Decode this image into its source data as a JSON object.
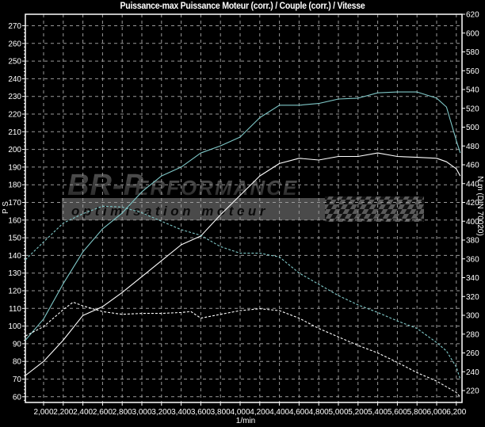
{
  "chart_data": {
    "type": "line",
    "title": "Puissance-max Puissance Moteur (corr.) / Couple (corr.) / Vitesse",
    "xlabel": "1/min",
    "ylabel_left": "P S",
    "ylabel_right": "N m (DIN 70020)",
    "xlim": [
      1815,
      6255
    ],
    "ylim_left": [
      57,
      276.5
    ],
    "ylim_right": [
      207,
      620
    ],
    "x_ticks": [
      2000,
      2200,
      2400,
      2600,
      2800,
      3000,
      3200,
      3400,
      3600,
      3800,
      4000,
      4200,
      4400,
      4600,
      4800,
      5000,
      5200,
      5400,
      5600,
      5800,
      6000,
      6200
    ],
    "x_tick_labels": [
      "2,000",
      "2,200",
      "2,400",
      "2,600",
      "2,800",
      "3,000",
      "3,200",
      "3,400",
      "3,600",
      "3,800",
      "4,000",
      "4,200",
      "4,400",
      "4,600",
      "4,800",
      "5,000",
      "5,200",
      "5,400",
      "5,600",
      "5,800",
      "6,000",
      "6,200"
    ],
    "y_left_ticks": [
      60,
      70,
      80,
      90,
      100,
      110,
      120,
      130,
      140,
      150,
      160,
      170,
      180,
      190,
      200,
      210,
      220,
      230,
      240,
      250,
      260,
      270
    ],
    "y_right_ticks": [
      220,
      240,
      260,
      280,
      300,
      320,
      340,
      360,
      380,
      400,
      420,
      440,
      460,
      480,
      500,
      520,
      540,
      560,
      580,
      600,
      620
    ],
    "grid": true,
    "background": "#000000",
    "series": [
      {
        "axis": "left",
        "color": "#7fc8c8",
        "style": "solid",
        "x": [
          1815,
          2000,
          2200,
          2400,
          2600,
          2800,
          3000,
          3200,
          3400,
          3600,
          3800,
          4000,
          4200,
          4400,
          4600,
          4800,
          5000,
          5200,
          5400,
          5600,
          5800,
          6000,
          6100,
          6200,
          6240
        ],
        "values": [
          92,
          104,
          124,
          142,
          155,
          164,
          176,
          185,
          190,
          198,
          202,
          207,
          218,
          225,
          225,
          226,
          228.5,
          229,
          232,
          232.5,
          232.5,
          229,
          224,
          205,
          198
        ]
      },
      {
        "axis": "left",
        "color": "#ffffff",
        "style": "solid",
        "x": [
          1815,
          2000,
          2200,
          2400,
          2600,
          2800,
          3000,
          3200,
          3400,
          3600,
          3800,
          4000,
          4200,
          4400,
          4600,
          4800,
          5000,
          5200,
          5400,
          5600,
          5800,
          6000,
          6100,
          6200,
          6240
        ],
        "values": [
          72,
          80,
          92,
          106,
          111,
          119,
          128,
          137,
          146,
          151,
          163,
          174,
          185,
          192,
          195,
          194,
          196,
          196,
          198,
          196,
          195.5,
          195,
          193,
          189,
          185
        ]
      },
      {
        "axis": "right",
        "color": "#7fc8c8",
        "style": "dashed",
        "x": [
          1815,
          2000,
          2200,
          2400,
          2600,
          2800,
          3000,
          3200,
          3400,
          3600,
          3800,
          4000,
          4200,
          4400,
          4600,
          4800,
          5000,
          5200,
          5400,
          5600,
          5800,
          6000,
          6100,
          6200,
          6240
        ],
        "values": [
          359,
          378,
          398,
          408,
          416,
          415,
          409,
          400,
          391,
          385,
          373,
          366,
          366,
          362,
          345,
          333,
          321,
          311,
          303,
          294,
          286,
          271,
          262,
          245,
          232
        ]
      },
      {
        "axis": "right",
        "color": "#ffffff",
        "style": "dashed",
        "x": [
          1815,
          2000,
          2200,
          2300,
          2400,
          2600,
          2800,
          3000,
          3200,
          3400,
          3500,
          3600,
          3800,
          4000,
          4200,
          4400,
          4600,
          4800,
          5000,
          5200,
          5400,
          5600,
          5800,
          6000,
          6200,
          6240
        ],
        "values": [
          278,
          288,
          306,
          314,
          310,
          304,
          301,
          302,
          302,
          303,
          304,
          297,
          301,
          305,
          307,
          305,
          297,
          286,
          277,
          268,
          260,
          250,
          239,
          230,
          218,
          213
        ]
      }
    ]
  },
  "watermark": {
    "brand": "BR-Performance",
    "tagline": "optimisation moteur"
  }
}
